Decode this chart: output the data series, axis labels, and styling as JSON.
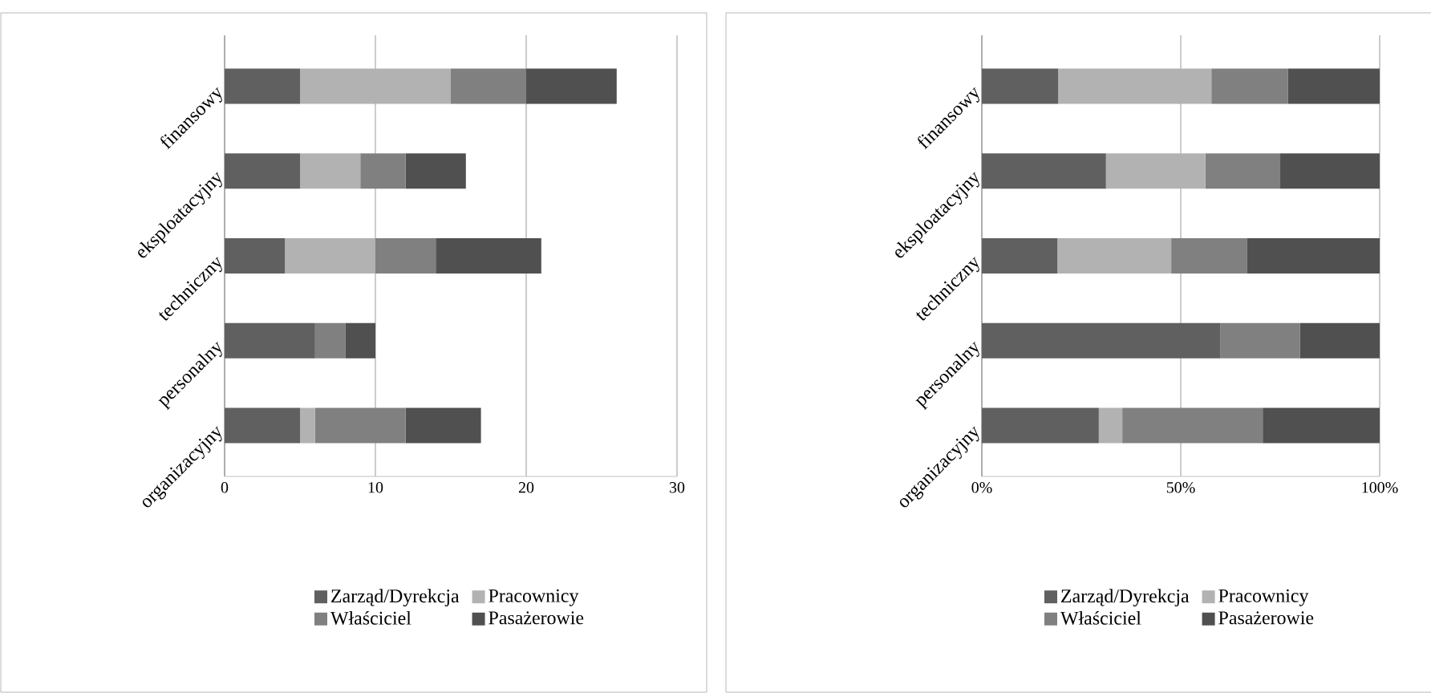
{
  "chart_data": [
    {
      "type": "bar",
      "orientation": "horizontal",
      "stacked": true,
      "categories": [
        "finansowy",
        "eksploatacyjny",
        "techniczny",
        "personalny",
        "organizacyjny"
      ],
      "series": [
        {
          "name": "Zarząd/Dyrekcja",
          "color": "#606060",
          "values": [
            5,
            5,
            4,
            6,
            5
          ]
        },
        {
          "name": "Pracownicy",
          "color": "#b2b2b2",
          "values": [
            10,
            4,
            6,
            0,
            1
          ]
        },
        {
          "name": "Właściciel",
          "color": "#808080",
          "values": [
            5,
            3,
            4,
            2,
            6
          ]
        },
        {
          "name": "Pasażerowie",
          "color": "#505050",
          "values": [
            6,
            4,
            7,
            2,
            5
          ]
        }
      ],
      "xlim": [
        0,
        30
      ],
      "xticks": [
        0,
        10,
        20,
        30
      ],
      "grid": "x",
      "legend": "bottom"
    },
    {
      "type": "bar",
      "orientation": "horizontal",
      "stacked": true,
      "categories": [
        "finansowy",
        "eksploatacyjny",
        "techniczny",
        "personalny",
        "organizacyjny"
      ],
      "series": [
        {
          "name": "Zarząd/Dyrekcja",
          "color": "#606060",
          "values": [
            19.2,
            31.2,
            19.0,
            60.0,
            29.4
          ]
        },
        {
          "name": "Pracownicy",
          "color": "#b2b2b2",
          "values": [
            38.5,
            25.0,
            28.6,
            0,
            5.9
          ]
        },
        {
          "name": "Właściciel",
          "color": "#808080",
          "values": [
            19.2,
            18.8,
            19.0,
            20.0,
            35.3
          ]
        },
        {
          "name": "Pasażerowie",
          "color": "#505050",
          "values": [
            23.1,
            25.0,
            33.4,
            20.0,
            29.4
          ]
        }
      ],
      "xlim": [
        0,
        100
      ],
      "xticks": [
        {
          "value": 0,
          "label": "0%"
        },
        {
          "value": 50,
          "label": "50%"
        },
        {
          "value": 100,
          "label": "100%"
        }
      ],
      "grid": "x",
      "legend": "bottom"
    }
  ]
}
